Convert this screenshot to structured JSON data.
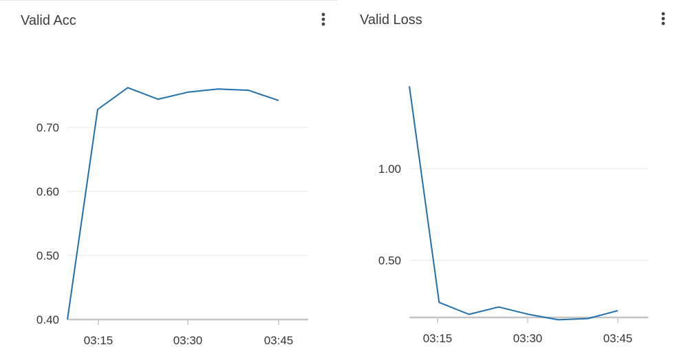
{
  "panels": {
    "acc": {
      "title": "Valid Acc"
    },
    "loss": {
      "title": "Valid Loss"
    }
  },
  "icons": {
    "menu": "more-vert-icon"
  },
  "colors": {
    "line": "#1f6fad",
    "grid": "#ececec",
    "axis": "#c4c4c4"
  },
  "chart_data": [
    {
      "type": "line",
      "title": "Valid Acc",
      "xlabel": "",
      "ylabel": "",
      "x": [
        "03:10",
        "03:15",
        "03:20",
        "03:25",
        "03:30",
        "03:35",
        "03:40",
        "03:45"
      ],
      "series": [
        {
          "values": [
            0.4,
            0.728,
            0.762,
            0.744,
            0.755,
            0.76,
            0.758,
            0.742
          ]
        }
      ],
      "x_tick_labels": [
        "03:15",
        "03:30",
        "03:45"
      ],
      "y_tick_labels": [
        "0.40",
        "0.50",
        "0.60",
        "0.70"
      ],
      "ylim": [
        0.4,
        0.76
      ],
      "grid": true
    },
    {
      "type": "line",
      "title": "Valid Loss",
      "xlabel": "",
      "ylabel": "",
      "x": [
        "03:10",
        "03:15",
        "03:20",
        "03:25",
        "03:30",
        "03:35",
        "03:40",
        "03:45"
      ],
      "series": [
        {
          "values": [
            1.45,
            0.27,
            0.205,
            0.245,
            0.205,
            0.175,
            0.182,
            0.225
          ]
        }
      ],
      "x_tick_labels": [
        "03:15",
        "03:30",
        "03:45"
      ],
      "y_tick_labels": [
        "0.50",
        "1.00"
      ],
      "ylim": [
        0.18,
        1.45
      ],
      "grid": true
    }
  ]
}
